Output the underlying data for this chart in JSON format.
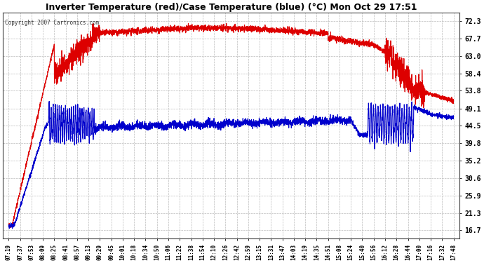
{
  "title": "Inverter Temperature (red)/Case Temperature (blue) (°C) Mon Oct 29 17:51",
  "copyright": "Copyright 2007 Cartronics.com",
  "background_color": "#ffffff",
  "plot_bg_color": "#ffffff",
  "grid_color": "#bbbbbb",
  "yticks": [
    16.7,
    21.3,
    25.9,
    30.6,
    35.2,
    39.8,
    44.5,
    49.1,
    53.8,
    58.4,
    63.0,
    67.7,
    72.3
  ],
  "ylim": [
    14.5,
    74.5
  ],
  "xtick_labels": [
    "07:19",
    "07:37",
    "07:53",
    "08:09",
    "08:25",
    "08:41",
    "08:57",
    "09:13",
    "09:29",
    "09:45",
    "10:01",
    "10:18",
    "10:34",
    "10:50",
    "11:06",
    "11:22",
    "11:38",
    "11:54",
    "12:10",
    "12:26",
    "12:42",
    "12:59",
    "13:15",
    "13:31",
    "13:47",
    "14:03",
    "14:19",
    "14:35",
    "14:51",
    "15:08",
    "15:24",
    "15:40",
    "15:56",
    "16:12",
    "16:28",
    "16:44",
    "17:00",
    "17:16",
    "17:32",
    "17:48"
  ],
  "red_line_color": "#dd0000",
  "blue_line_color": "#0000cc",
  "line_width": 0.8
}
